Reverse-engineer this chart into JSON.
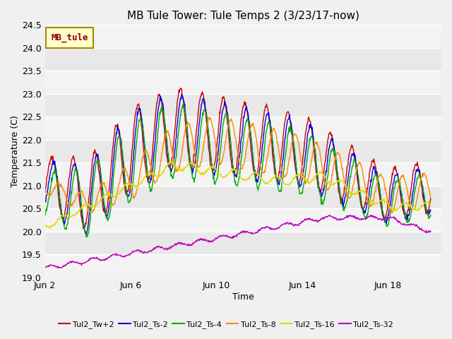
{
  "title": "MB Tule Tower: Tule Temps 2 (3/23/17-now)",
  "xlabel": "Time",
  "ylabel": "Temperature (C)",
  "ylim": [
    19.0,
    24.5
  ],
  "yticks": [
    19.0,
    19.5,
    20.0,
    20.5,
    21.0,
    21.5,
    22.0,
    22.5,
    23.0,
    23.5,
    24.0,
    24.5
  ],
  "series_colors": {
    "Tul2_Tw+2": "#cc0000",
    "Tul2_Ts-2": "#0000dd",
    "Tul2_Ts-4": "#00aa00",
    "Tul2_Ts-8": "#ff8800",
    "Tul2_Ts-16": "#dddd00",
    "Tul2_Ts-32": "#bb00bb"
  },
  "legend_label": "MB_tule",
  "legend_bg": "#ffffcc",
  "legend_border": "#aa8800",
  "xtick_labels": [
    "Jun 2",
    "Jun 6",
    "Jun 10",
    "Jun 14",
    "Jun 18"
  ],
  "xtick_positions": [
    1,
    5,
    9,
    13,
    17
  ],
  "fig_bg": "#f0f0f0",
  "plot_bg": "#e8e8e8",
  "grid_color": "#ffffff"
}
